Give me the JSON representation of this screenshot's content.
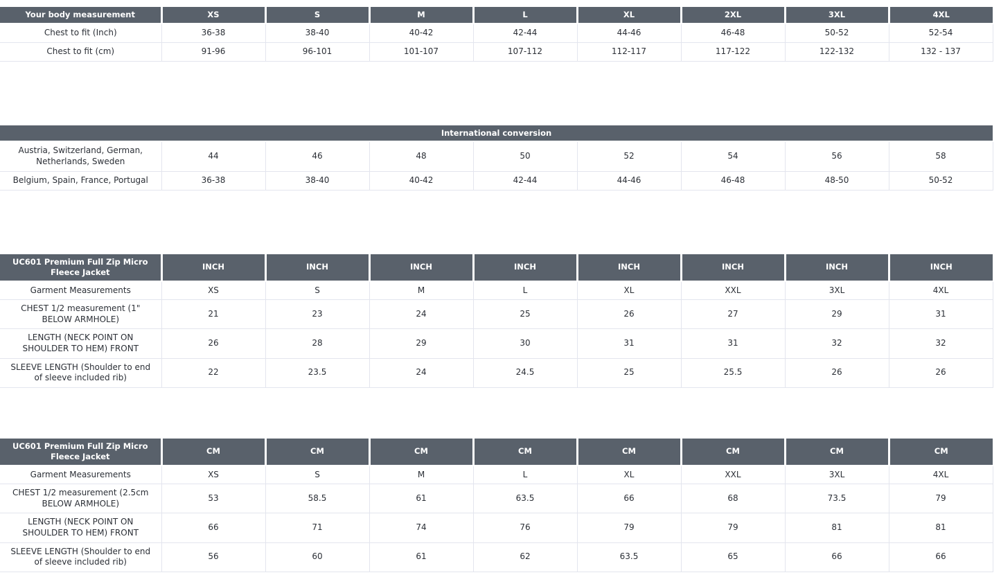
{
  "colors": {
    "header_bg": "#59616b",
    "header_text": "#ffffff",
    "body_text": "#2b2f36",
    "border": "#e3e5ee",
    "row_bg": "#ffffff"
  },
  "tables": [
    {
      "id": "body-measurement",
      "header": [
        "Your body measurement",
        "XS",
        "S",
        "M",
        "L",
        "XL",
        "2XL",
        "3XL",
        "4XL"
      ],
      "rows": [
        [
          "Chest to fit (Inch)",
          "36-38",
          "38-40",
          "40-42",
          "42-44",
          "44-46",
          "46-48",
          "50-52",
          "52-54"
        ],
        [
          "Chest to fit (cm)",
          "91-96",
          "96-101",
          "101-107",
          "107-112",
          "112-117",
          "117-122",
          "122-132",
          "132 - 137"
        ]
      ]
    },
    {
      "id": "international-conversion",
      "merged_header": "International conversion",
      "rows": [
        [
          "Austria, Switzerland, German, Netherlands, Sweden",
          "44",
          "46",
          "48",
          "50",
          "52",
          "54",
          "56",
          "58"
        ],
        [
          "Belgium, Spain, France, Portugal",
          "36-38",
          "38-40",
          "40-42",
          "42-44",
          "44-46",
          "46-48",
          "48-50",
          "50-52"
        ]
      ]
    },
    {
      "id": "garment-measurements-inch",
      "header": [
        "UC601 Premium Full Zip Micro Fleece Jacket",
        "INCH",
        "INCH",
        "INCH",
        "INCH",
        "INCH",
        "INCH",
        "INCH",
        "INCH"
      ],
      "rows": [
        [
          "Garment Measurements",
          "XS",
          "S",
          "M",
          "L",
          "XL",
          "XXL",
          "3XL",
          "4XL"
        ],
        [
          "CHEST 1/2 measurement (1\" BELOW ARMHOLE)",
          "21",
          "23",
          "24",
          "25",
          "26",
          "27",
          "29",
          "31"
        ],
        [
          "LENGTH (NECK POINT ON SHOULDER TO HEM) FRONT",
          "26",
          "28",
          "29",
          "30",
          "31",
          "31",
          "32",
          "32"
        ],
        [
          "SLEEVE LENGTH (Shoulder to end of sleeve included rib)",
          "22",
          "23.5",
          "24",
          "24.5",
          "25",
          "25.5",
          "26",
          "26"
        ]
      ]
    },
    {
      "id": "garment-measurements-cm",
      "header": [
        "UC601 Premium Full Zip Micro Fleece Jacket",
        "CM",
        "CM",
        "CM",
        "CM",
        "CM",
        "CM",
        "CM",
        "CM"
      ],
      "rows": [
        [
          "Garment Measurements",
          "XS",
          "S",
          "M",
          "L",
          "XL",
          "XXL",
          "3XL",
          "4XL"
        ],
        [
          "CHEST 1/2 measurement (2.5cm BELOW ARMHOLE)",
          "53",
          "58.5",
          "61",
          "63.5",
          "66",
          "68",
          "73.5",
          "79"
        ],
        [
          "LENGTH (NECK POINT ON SHOULDER TO HEM) FRONT",
          "66",
          "71",
          "74",
          "76",
          "79",
          "79",
          "81",
          "81"
        ],
        [
          "SLEEVE LENGTH (Shoulder to end of sleeve included rib)",
          "56",
          "60",
          "61",
          "62",
          "63.5",
          "65",
          "66",
          "66"
        ]
      ]
    }
  ]
}
